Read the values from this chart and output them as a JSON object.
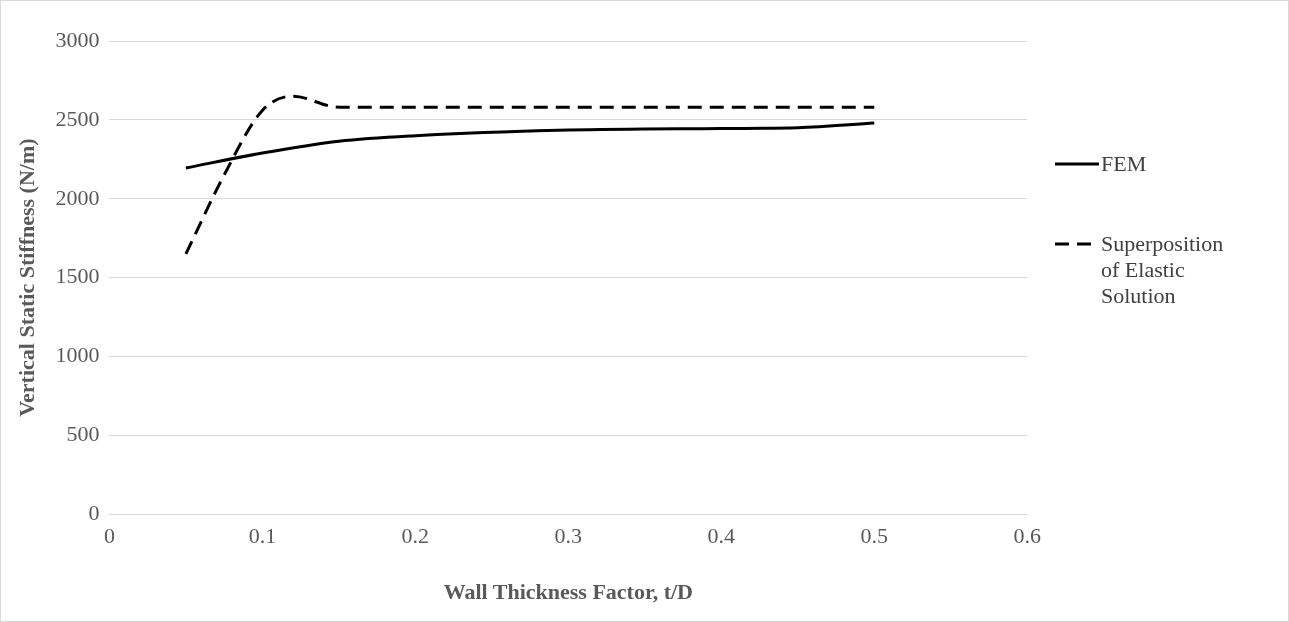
{
  "chart_data": {
    "type": "line",
    "xlabel": "Wall Thickness Factor, t/D",
    "ylabel": "Vertical Static Stiffness (N/m)",
    "xlim": [
      0,
      0.6
    ],
    "xticks": [
      0,
      0.1,
      0.2,
      0.3,
      0.4,
      0.5,
      0.6
    ],
    "ylim": [
      0,
      3000
    ],
    "yticks": [
      0,
      500,
      1000,
      1500,
      2000,
      2500,
      3000
    ],
    "grid": "y",
    "legend": "right",
    "marker": "none",
    "series": [
      {
        "name": "FEM",
        "color": "#000000",
        "line_style": "solid",
        "x": [
          0.05,
          0.1,
          0.15,
          0.2,
          0.3,
          0.4,
          0.45,
          0.5
        ],
        "values": [
          2195,
          2290,
          2365,
          2400,
          2435,
          2445,
          2450,
          2480
        ]
      },
      {
        "name": "Superposition of Elastic Solution",
        "color": "#000000",
        "line_style": "dashed",
        "x": [
          0.05,
          0.075,
          0.1,
          0.12,
          0.15,
          0.2,
          0.3,
          0.4,
          0.5
        ],
        "values": [
          1650,
          2150,
          2560,
          2650,
          2580,
          2580,
          2580,
          2580,
          2580
        ]
      }
    ]
  }
}
